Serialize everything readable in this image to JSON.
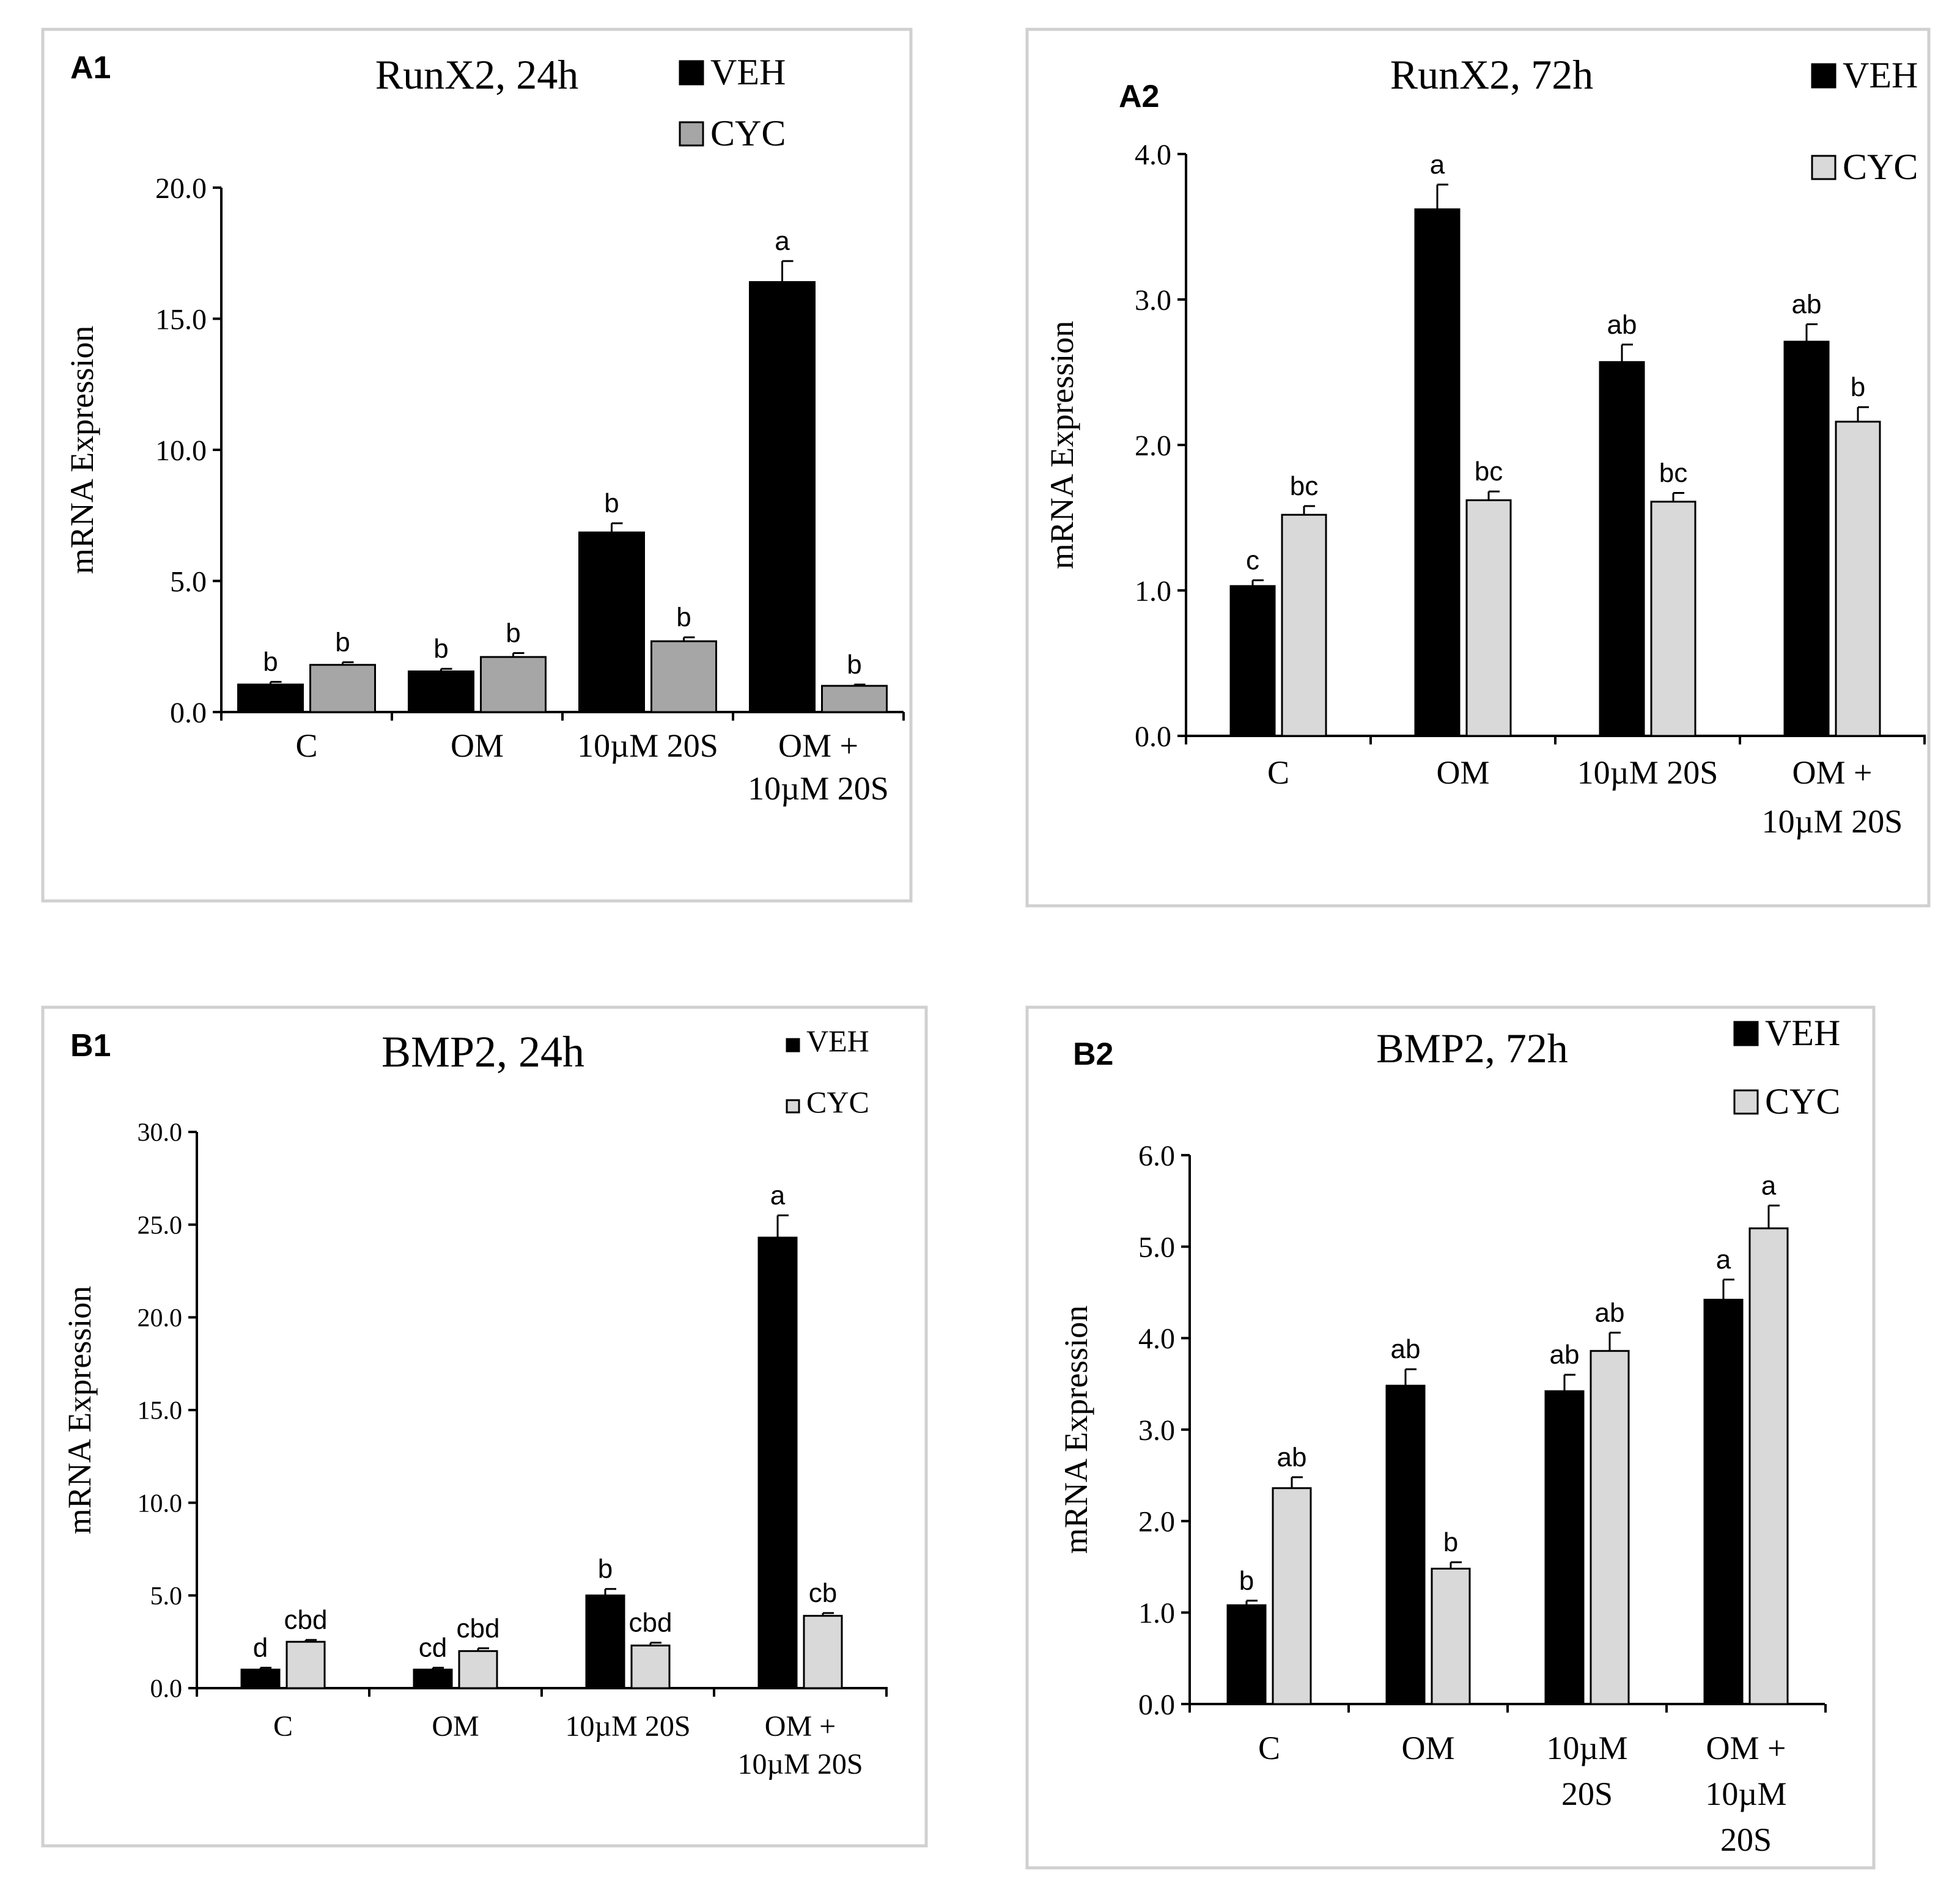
{
  "chart_data": [
    {
      "type": "bar",
      "panel_label": "A1",
      "title": "RunX2, 24h",
      "ylabel": "mRNA Expression",
      "xlabel": "",
      "ylim": [
        0,
        20
      ],
      "ytick_values": [
        0,
        5,
        10,
        15,
        20
      ],
      "ytick_labels": [
        "0.0",
        "5.0",
        "10.0",
        "15.0",
        "20.0"
      ],
      "categories": [
        [
          "C"
        ],
        [
          "OM"
        ],
        [
          "10µM 20S"
        ],
        [
          "OM +",
          "10µM 20S"
        ]
      ],
      "legend": [
        "VEH",
        "CYC"
      ],
      "legend_position": "top-right",
      "series": [
        {
          "name": "VEH",
          "color": "#000000",
          "values": [
            1.05,
            1.55,
            6.85,
            16.4
          ],
          "errors": [
            0.1,
            0.1,
            0.35,
            0.8
          ],
          "letters": [
            "b",
            "b",
            "b",
            "a"
          ]
        },
        {
          "name": "CYC",
          "color": "#a6a6a6",
          "values": [
            1.8,
            2.1,
            2.7,
            1.0
          ],
          "errors": [
            0.1,
            0.15,
            0.15,
            0.05
          ],
          "letters": [
            "b",
            "b",
            "b",
            "b"
          ]
        }
      ]
    },
    {
      "type": "bar",
      "panel_label": "A2",
      "title": "RunX2, 72h",
      "ylabel": "mRNA Expression",
      "xlabel": "",
      "ylim": [
        0,
        4
      ],
      "ytick_values": [
        0,
        1,
        2,
        3,
        4
      ],
      "ytick_labels": [
        "0.0",
        "1.0",
        "2.0",
        "3.0",
        "4.0"
      ],
      "categories": [
        [
          "C"
        ],
        [
          "OM"
        ],
        [
          "10µM 20S"
        ],
        [
          "OM +",
          "10µM 20S"
        ]
      ],
      "legend": [
        "VEH",
        "CYC"
      ],
      "legend_position": "top-right",
      "series": [
        {
          "name": "VEH",
          "color": "#000000",
          "values": [
            1.03,
            3.62,
            2.57,
            2.71
          ],
          "errors": [
            0.04,
            0.17,
            0.12,
            0.12
          ],
          "letters": [
            "c",
            "a",
            "ab",
            "ab"
          ]
        },
        {
          "name": "CYC",
          "color": "#d9d9d9",
          "values": [
            1.52,
            1.62,
            1.61,
            2.16
          ],
          "errors": [
            0.06,
            0.06,
            0.06,
            0.1
          ],
          "letters": [
            "bc",
            "bc",
            "bc",
            "b"
          ]
        }
      ]
    },
    {
      "type": "bar",
      "panel_label": "B1",
      "title": "BMP2, 24h",
      "ylabel": "mRNA Expression",
      "xlabel": "",
      "ylim": [
        0,
        30
      ],
      "ytick_values": [
        0,
        5,
        10,
        15,
        20,
        25,
        30
      ],
      "ytick_labels": [
        "0.0",
        "5.0",
        "10.0",
        "15.0",
        "20.0",
        "25.0",
        "30.0"
      ],
      "categories": [
        [
          "C"
        ],
        [
          "OM"
        ],
        [
          "10µM 20S"
        ],
        [
          "OM +",
          "10µM 20S"
        ]
      ],
      "legend": [
        "VEH",
        "CYC"
      ],
      "legend_position": "top-right",
      "series": [
        {
          "name": "VEH",
          "color": "#000000",
          "values": [
            1.0,
            1.0,
            5.0,
            24.3
          ],
          "errors": [
            0.1,
            0.1,
            0.35,
            1.2
          ],
          "letters": [
            "d",
            "cd",
            "b",
            "a"
          ]
        },
        {
          "name": "CYC",
          "color": "#d9d9d9",
          "values": [
            2.5,
            2.0,
            2.3,
            3.9
          ],
          "errors": [
            0.1,
            0.15,
            0.15,
            0.15
          ],
          "letters": [
            "cbd",
            "cbd",
            "cbd",
            "cb"
          ]
        }
      ]
    },
    {
      "type": "bar",
      "panel_label": "B2",
      "title": "BMP2, 72h",
      "ylabel": "mRNA Expression",
      "xlabel": "",
      "ylim": [
        0,
        6
      ],
      "ytick_values": [
        0,
        1,
        2,
        3,
        4,
        5,
        6
      ],
      "ytick_labels": [
        "0.0",
        "1.0",
        "2.0",
        "3.0",
        "4.0",
        "5.0",
        "6.0"
      ],
      "categories": [
        [
          "C"
        ],
        [
          "OM"
        ],
        [
          "10µM",
          "20S"
        ],
        [
          "OM +",
          "10µM",
          "20S"
        ]
      ],
      "legend": [
        "VEH",
        "CYC"
      ],
      "legend_position": "top-right",
      "series": [
        {
          "name": "VEH",
          "color": "#000000",
          "values": [
            1.08,
            3.48,
            3.42,
            4.42
          ],
          "errors": [
            0.05,
            0.18,
            0.18,
            0.22
          ],
          "letters": [
            "b",
            "ab",
            "ab",
            "a"
          ]
        },
        {
          "name": "CYC",
          "color": "#d9d9d9",
          "values": [
            2.36,
            1.48,
            3.86,
            5.2
          ],
          "errors": [
            0.12,
            0.07,
            0.2,
            0.25
          ],
          "letters": [
            "ab",
            "b",
            "ab",
            "a"
          ]
        }
      ]
    }
  ]
}
